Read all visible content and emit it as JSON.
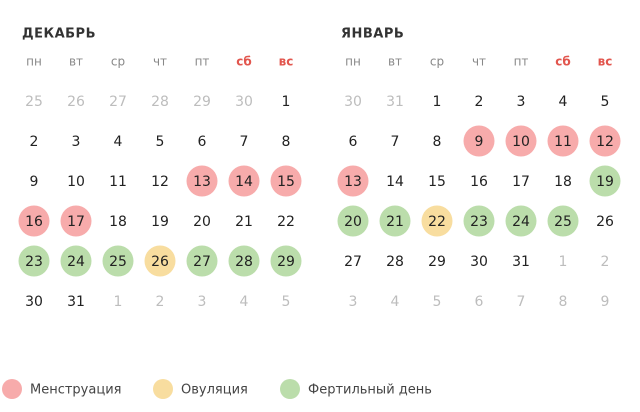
{
  "months": [
    {
      "title": "ДЕКАБРЬ",
      "weekdays": [
        {
          "label": "пн"
        },
        {
          "label": "вт"
        },
        {
          "label": "ср"
        },
        {
          "label": "чт"
        },
        {
          "label": "пт"
        },
        {
          "label": "сб",
          "color": "#e2564e"
        },
        {
          "label": "вс",
          "color": "#e2564e"
        }
      ],
      "weeks": [
        [
          {
            "d": 25,
            "muted": true
          },
          {
            "d": 26,
            "muted": true
          },
          {
            "d": 27,
            "muted": true
          },
          {
            "d": 28,
            "muted": true
          },
          {
            "d": 29,
            "muted": true
          },
          {
            "d": 30,
            "muted": true
          },
          {
            "d": 1
          }
        ],
        [
          {
            "d": 2
          },
          {
            "d": 3
          },
          {
            "d": 4
          },
          {
            "d": 5
          },
          {
            "d": 6
          },
          {
            "d": 7
          },
          {
            "d": 8
          }
        ],
        [
          {
            "d": 9
          },
          {
            "d": 10
          },
          {
            "d": 11
          },
          {
            "d": 12
          },
          {
            "d": 13,
            "legend": 0
          },
          {
            "d": 14,
            "legend": 0
          },
          {
            "d": 15,
            "legend": 0
          }
        ],
        [
          {
            "d": 16,
            "legend": 0
          },
          {
            "d": 17,
            "legend": 0
          },
          {
            "d": 18
          },
          {
            "d": 19
          },
          {
            "d": 20
          },
          {
            "d": 21
          },
          {
            "d": 22
          }
        ],
        [
          {
            "d": 23,
            "legend": 2
          },
          {
            "d": 24,
            "legend": 2
          },
          {
            "d": 25,
            "legend": 2
          },
          {
            "d": 26,
            "legend": 1
          },
          {
            "d": 27,
            "legend": 2
          },
          {
            "d": 28,
            "legend": 2
          },
          {
            "d": 29,
            "legend": 2
          }
        ],
        [
          {
            "d": 30
          },
          {
            "d": 31
          },
          {
            "d": 1,
            "muted": true
          },
          {
            "d": 2,
            "muted": true
          },
          {
            "d": 3,
            "muted": true
          },
          {
            "d": 4,
            "muted": true
          },
          {
            "d": 5,
            "muted": true
          }
        ]
      ]
    },
    {
      "title": "ЯНВАРЬ",
      "weekdays": [
        {
          "label": "пн"
        },
        {
          "label": "вт"
        },
        {
          "label": "ср"
        },
        {
          "label": "чт"
        },
        {
          "label": "пт"
        },
        {
          "label": "сб",
          "color": "#e2564e"
        },
        {
          "label": "вс",
          "color": "#e2564e"
        }
      ],
      "weeks": [
        [
          {
            "d": 30,
            "muted": true
          },
          {
            "d": 31,
            "muted": true
          },
          {
            "d": 1
          },
          {
            "d": 2
          },
          {
            "d": 3
          },
          {
            "d": 4
          },
          {
            "d": 5
          }
        ],
        [
          {
            "d": 6
          },
          {
            "d": 7
          },
          {
            "d": 8
          },
          {
            "d": 9,
            "legend": 0
          },
          {
            "d": 10,
            "legend": 0
          },
          {
            "d": 11,
            "legend": 0
          },
          {
            "d": 12,
            "legend": 0
          }
        ],
        [
          {
            "d": 13,
            "legend": 0
          },
          {
            "d": 14
          },
          {
            "d": 15
          },
          {
            "d": 16
          },
          {
            "d": 17
          },
          {
            "d": 18
          },
          {
            "d": 19,
            "legend": 2
          }
        ],
        [
          {
            "d": 20,
            "legend": 2
          },
          {
            "d": 21,
            "legend": 2
          },
          {
            "d": 22,
            "legend": 1
          },
          {
            "d": 23,
            "legend": 2
          },
          {
            "d": 24,
            "legend": 2
          },
          {
            "d": 25,
            "legend": 2
          },
          {
            "d": 26
          }
        ],
        [
          {
            "d": 27
          },
          {
            "d": 28
          },
          {
            "d": 29
          },
          {
            "d": 30
          },
          {
            "d": 31
          },
          {
            "d": 1,
            "muted": true
          },
          {
            "d": 2,
            "muted": true
          }
        ],
        [
          {
            "d": 3,
            "muted": true
          },
          {
            "d": 4,
            "muted": true
          },
          {
            "d": 5,
            "muted": true
          },
          {
            "d": 6,
            "muted": true
          },
          {
            "d": 7,
            "muted": true
          },
          {
            "d": 8,
            "muted": true
          },
          {
            "d": 9,
            "muted": true
          }
        ]
      ]
    }
  ],
  "legend": [
    {
      "label": "Менструация",
      "color": "#f7abab"
    },
    {
      "label": "Овуляция",
      "color": "#f8dd9f"
    },
    {
      "label": "Фертильный день",
      "color": "#bbddab"
    }
  ]
}
